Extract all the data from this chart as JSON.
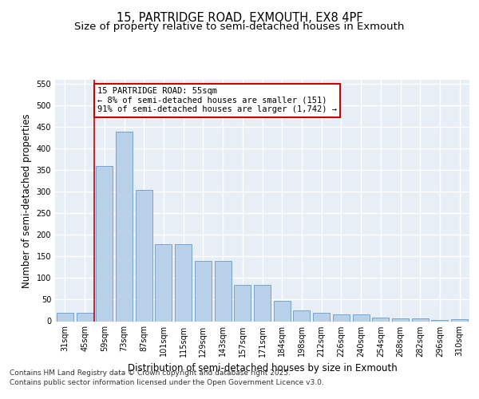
{
  "title_line1": "15, PARTRIDGE ROAD, EXMOUTH, EX8 4PF",
  "title_line2": "Size of property relative to semi-detached houses in Exmouth",
  "xlabel": "Distribution of semi-detached houses by size in Exmouth",
  "ylabel": "Number of semi-detached properties",
  "categories": [
    "31sqm",
    "45sqm",
    "59sqm",
    "73sqm",
    "87sqm",
    "101sqm",
    "115sqm",
    "129sqm",
    "143sqm",
    "157sqm",
    "171sqm",
    "184sqm",
    "198sqm",
    "212sqm",
    "226sqm",
    "240sqm",
    "254sqm",
    "268sqm",
    "282sqm",
    "296sqm",
    "310sqm"
  ],
  "values": [
    20,
    20,
    360,
    440,
    305,
    178,
    178,
    140,
    140,
    85,
    85,
    47,
    25,
    20,
    15,
    15,
    8,
    7,
    6,
    3,
    5
  ],
  "bar_color": "#b8d0e8",
  "bar_edge_color": "#6699cc",
  "background_color": "#e8eef5",
  "grid_color": "#ffffff",
  "annotation_text": "15 PARTRIDGE ROAD: 55sqm\n← 8% of semi-detached houses are smaller (151)\n91% of semi-detached houses are larger (1,742) →",
  "annotation_box_facecolor": "#ffffff",
  "annotation_box_edgecolor": "#cc0000",
  "vline_x_index": 1.5,
  "vline_color": "#cc0000",
  "ylim": [
    0,
    560
  ],
  "yticks": [
    0,
    50,
    100,
    150,
    200,
    250,
    300,
    350,
    400,
    450,
    500,
    550
  ],
  "footer_line1": "Contains HM Land Registry data © Crown copyright and database right 2025.",
  "footer_line2": "Contains public sector information licensed under the Open Government Licence v3.0.",
  "title_fontsize": 10.5,
  "subtitle_fontsize": 9.5,
  "axis_label_fontsize": 8.5,
  "tick_fontsize": 7,
  "annotation_fontsize": 7.5,
  "footer_fontsize": 6.5
}
